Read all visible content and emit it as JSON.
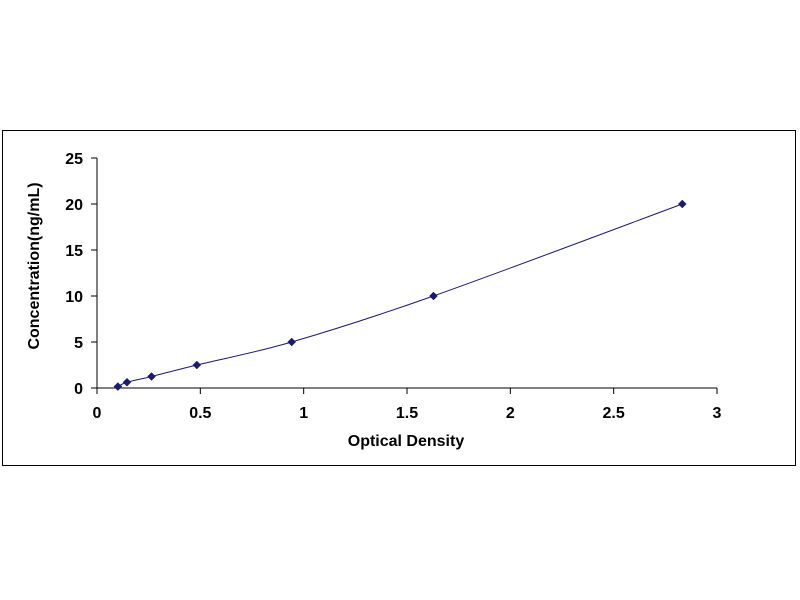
{
  "chart_data": {
    "type": "scatter",
    "title": "",
    "xlabel": "Optical Density",
    "ylabel": "Concentration(ng/mL)",
    "xlim": [
      0,
      3
    ],
    "ylim": [
      0,
      25
    ],
    "x_ticks": [
      "0",
      "0.5",
      "1",
      "1.5",
      "2",
      "2.5",
      "3"
    ],
    "y_ticks": [
      "0",
      "5",
      "10",
      "15",
      "20",
      "25"
    ],
    "grid": false,
    "legend": "none",
    "trendline": true,
    "colors": {
      "marker": "#1a1a6e",
      "line": "#1a1a6e",
      "axis": "#000000"
    },
    "series": [
      {
        "x": [
          0.101,
          0.145,
          0.264,
          0.483,
          0.942,
          1.628,
          2.832
        ],
        "y": [
          0.156,
          0.625,
          1.25,
          2.5,
          5,
          10,
          20
        ]
      }
    ]
  }
}
